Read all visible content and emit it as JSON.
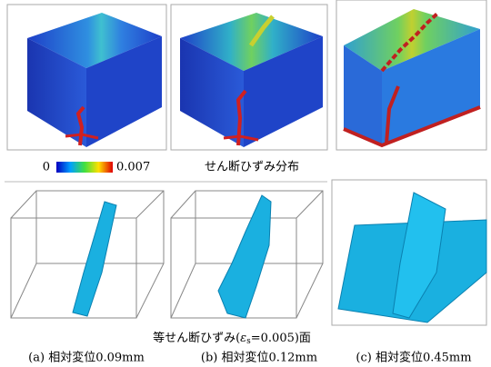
{
  "colorbar": {
    "min": 0,
    "max": 0.007
  },
  "labels": {
    "strain_distribution": "せん断ひずみ分布",
    "isosurface": {
      "prefix": "等せん断ひずみ(",
      "symbol": "ε",
      "subscript": "s",
      "suffix": "=0.005)面"
    }
  },
  "panels": [
    {
      "caption": "(a) 相対変位0.09mm"
    },
    {
      "caption": "(b) 相対変位0.12mm"
    },
    {
      "caption": "(c) 相対変位0.45mm"
    }
  ]
}
